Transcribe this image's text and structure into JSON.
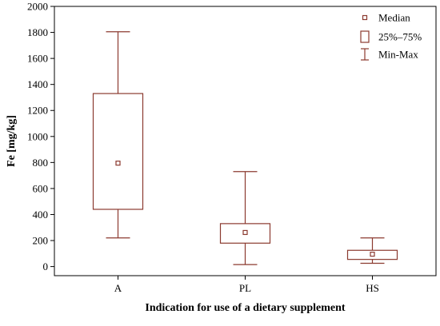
{
  "colors": {
    "box": "#8b3a2f",
    "axis": "#000000",
    "background": "#ffffff"
  },
  "chart_data": {
    "type": "box",
    "xlabel": "Indication for use of a dietary supplement",
    "ylabel": "Fe [mg/kg]",
    "ylim": [
      -70,
      2000
    ],
    "yticks": [
      0,
      200,
      400,
      600,
      800,
      1000,
      1200,
      1400,
      1600,
      1800,
      2000
    ],
    "categories": [
      "A",
      "PL",
      "HS"
    ],
    "boxes": [
      {
        "category": "A",
        "min": 220,
        "q1": 440,
        "median": 795,
        "q3": 1330,
        "max": 1805
      },
      {
        "category": "PL",
        "min": 15,
        "q1": 180,
        "median": 262,
        "q3": 330,
        "max": 730
      },
      {
        "category": "HS",
        "min": 25,
        "q1": 55,
        "median": 95,
        "q3": 125,
        "max": 220
      }
    ],
    "legend": {
      "position": "top-right",
      "entries": [
        {
          "marker": "median-square-icon",
          "label": "Median"
        },
        {
          "marker": "box-rect-icon",
          "label": "25%–75%"
        },
        {
          "marker": "whisker-icon",
          "label": "Min-Max"
        }
      ]
    },
    "grid": false
  }
}
